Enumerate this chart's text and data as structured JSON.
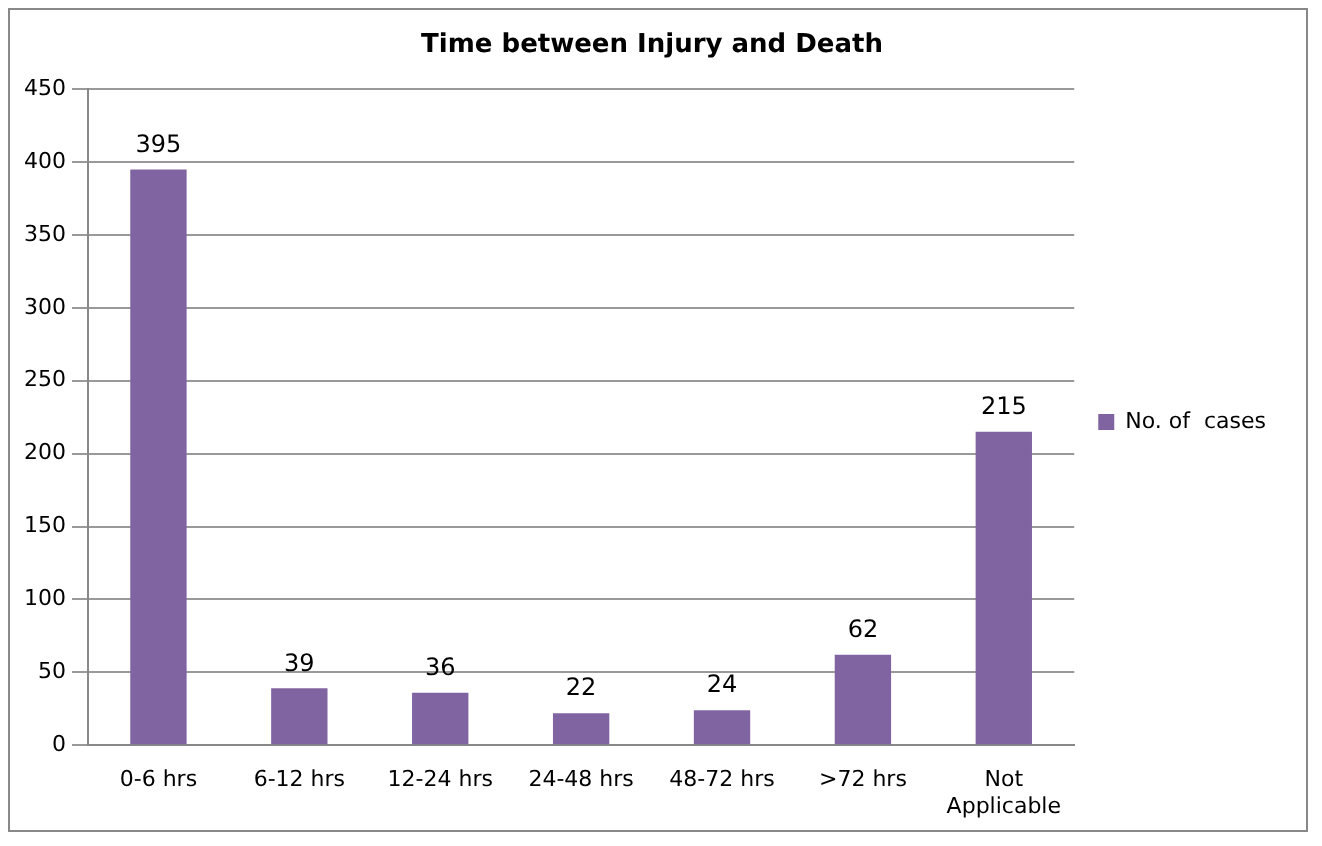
{
  "chart_data": {
    "type": "bar",
    "title": "Time between Injury and Death",
    "categories": [
      "0-6 hrs",
      "6-12 hrs",
      "12-24 hrs",
      "24-48 hrs",
      "48-72 hrs",
      ">72 hrs",
      "Not Applicable"
    ],
    "series": [
      {
        "name": "No. of  cases",
        "color": "#8064a2",
        "values": [
          395,
          39,
          36,
          22,
          24,
          62,
          215
        ]
      }
    ],
    "ylim": [
      0,
      450
    ],
    "yticks": [
      0,
      50,
      100,
      150,
      200,
      250,
      300,
      350,
      400,
      450
    ],
    "grid": "y",
    "legend": "right",
    "data_labels": true
  }
}
